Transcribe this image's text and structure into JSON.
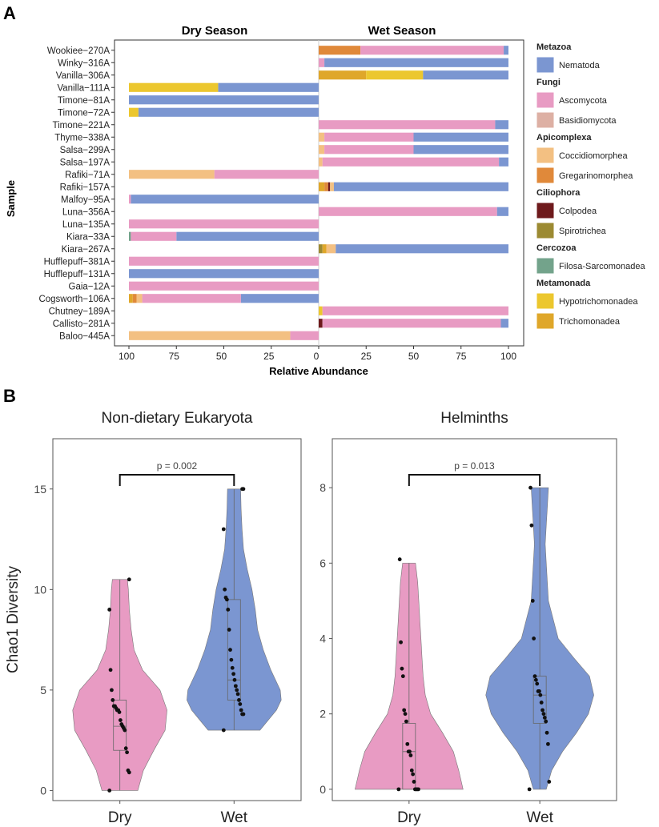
{
  "colors": {
    "Nematoda": "#7b96d1",
    "Ascomycota": "#e89bc3",
    "Basidiomycota": "#ddb0a4",
    "Coccidiomorphea": "#f3c082",
    "Gregarinomorphea": "#e0893a",
    "Colpodea": "#6e1a1c",
    "Spirotrichea": "#9c8a32",
    "Filosa-Sarcomonadea": "#73a38b",
    "Hypotrichomonadea": "#ecc72e",
    "Trichomonadea": "#dfa72a",
    "dry": "#e89bc3",
    "wet": "#7b96d1"
  },
  "chart_data": [
    {
      "panel": "A",
      "type": "bar",
      "orientation": "horizontal",
      "stacked": true,
      "seasons": [
        "Dry Season",
        "Wet Season"
      ],
      "xlabel": "Relative Abundance",
      "ylabel": "Sample",
      "xticks_dry": [
        "100",
        "75",
        "50",
        "25",
        "0"
      ],
      "xticks_wet": [
        "0",
        "25",
        "50",
        "75",
        "100"
      ],
      "samples": [
        {
          "name": "Wookiee−270A",
          "dry": [],
          "wet": [
            [
              "Gregarinomorphea",
              22
            ],
            [
              "Ascomycota",
              75.5
            ],
            [
              "Nematoda",
              2.5
            ]
          ]
        },
        {
          "name": "Winky−316A",
          "dry": [],
          "wet": [
            [
              "Ascomycota",
              3
            ],
            [
              "Nematoda",
              97
            ]
          ]
        },
        {
          "name": "Vanilla−306A",
          "dry": [],
          "wet": [
            [
              "Trichomonadea",
              25
            ],
            [
              "Hypotrichomonadea",
              30
            ],
            [
              "Nematoda",
              45
            ]
          ]
        },
        {
          "name": "Vanilla−111A",
          "dry": [
            [
              "Nematoda",
              53
            ],
            [
              "Hypotrichomonadea",
              47
            ]
          ],
          "wet": []
        },
        {
          "name": "Timone−81A",
          "dry": [
            [
              "Nematoda",
              100
            ]
          ],
          "wet": []
        },
        {
          "name": "Timone−72A",
          "dry": [
            [
              "Nematoda",
              95
            ],
            [
              "Hypotrichomonadea",
              5
            ]
          ],
          "wet": []
        },
        {
          "name": "Timone−221A",
          "dry": [],
          "wet": [
            [
              "Ascomycota",
              93
            ],
            [
              "Nematoda",
              7
            ]
          ]
        },
        {
          "name": "Thyme−338A",
          "dry": [],
          "wet": [
            [
              "Coccidiomorphea",
              3
            ],
            [
              "Ascomycota",
              47
            ],
            [
              "Nematoda",
              50
            ]
          ]
        },
        {
          "name": "Salsa−299A",
          "dry": [],
          "wet": [
            [
              "Coccidiomorphea",
              3
            ],
            [
              "Ascomycota",
              47
            ],
            [
              "Nematoda",
              50
            ]
          ]
        },
        {
          "name": "Salsa−197A",
          "dry": [],
          "wet": [
            [
              "Coccidiomorphea",
              2
            ],
            [
              "Ascomycota",
              93
            ],
            [
              "Nematoda",
              5
            ]
          ]
        },
        {
          "name": "Rafiki−71A",
          "dry": [
            [
              "Ascomycota",
              55
            ],
            [
              "Coccidiomorphea",
              45
            ]
          ],
          "wet": []
        },
        {
          "name": "Rafiki−157A",
          "dry": [],
          "wet": [
            [
              "Trichomonadea",
              3
            ],
            [
              "Gregarinomorphea",
              2
            ],
            [
              "Colpodea",
              1
            ],
            [
              "Coccidiomorphea",
              2
            ],
            [
              "Nematoda",
              92
            ]
          ]
        },
        {
          "name": "Malfoy−95A",
          "dry": [
            [
              "Nematoda",
              99
            ],
            [
              "Ascomycota",
              1
            ]
          ],
          "wet": []
        },
        {
          "name": "Luna−356A",
          "dry": [],
          "wet": [
            [
              "Ascomycota",
              94
            ],
            [
              "Nematoda",
              6
            ]
          ]
        },
        {
          "name": "Luna−135A",
          "dry": [
            [
              "Ascomycota",
              100
            ]
          ],
          "wet": []
        },
        {
          "name": "Kiara−33A",
          "dry": [
            [
              "Nematoda",
              75
            ],
            [
              "Ascomycota",
              24
            ],
            [
              "Filosa-Sarcomonadea",
              1
            ]
          ],
          "wet": []
        },
        {
          "name": "Kiara−267A",
          "dry": [],
          "wet": [
            [
              "Spirotrichea",
              2
            ],
            [
              "Trichomonadea",
              2
            ],
            [
              "Coccidiomorphea",
              5
            ],
            [
              "Nematoda",
              91
            ]
          ]
        },
        {
          "name": "Hufflepuff−381A",
          "dry": [
            [
              "Ascomycota",
              100
            ]
          ],
          "wet": []
        },
        {
          "name": "Hufflepuff−131A",
          "dry": [
            [
              "Nematoda",
              100
            ]
          ],
          "wet": []
        },
        {
          "name": "Gaia−12A",
          "dry": [
            [
              "Ascomycota",
              100
            ]
          ],
          "wet": []
        },
        {
          "name": "Cogsworth−106A",
          "dry": [
            [
              "Nematoda",
              41
            ],
            [
              "Ascomycota",
              52
            ],
            [
              "Coccidiomorphea",
              3
            ],
            [
              "Gregarinomorphea",
              2
            ],
            [
              "Trichomonadea",
              2
            ]
          ],
          "wet": []
        },
        {
          "name": "Chutney−189A",
          "dry": [],
          "wet": [
            [
              "Hypotrichomonadea",
              2
            ],
            [
              "Ascomycota",
              98
            ]
          ]
        },
        {
          "name": "Callisto−281A",
          "dry": [],
          "wet": [
            [
              "Colpodea",
              2
            ],
            [
              "Ascomycota",
              94
            ],
            [
              "Nematoda",
              4
            ]
          ]
        },
        {
          "name": "Baloo−445A",
          "dry": [
            [
              "Ascomycota",
              15
            ],
            [
              "Coccidiomorphea",
              85
            ]
          ],
          "wet": []
        }
      ],
      "legend": [
        {
          "group": "Metazoa",
          "items": [
            "Nematoda"
          ]
        },
        {
          "group": "Fungi",
          "items": [
            "Ascomycota",
            "Basidiomycota"
          ]
        },
        {
          "group": "Apicomplexa",
          "items": [
            "Coccidiomorphea",
            "Gregarinomorphea"
          ]
        },
        {
          "group": "Ciliophora",
          "items": [
            "Colpodea",
            "Spirotrichea"
          ]
        },
        {
          "group": "Cercozoa",
          "items": [
            "Filosa-Sarcomonadea"
          ]
        },
        {
          "group": "Metamonada",
          "items": [
            "Hypotrichomonadea",
            "Trichomonadea"
          ]
        }
      ]
    },
    {
      "panel": "B",
      "type": "violin",
      "title": "Non-dietary Eukaryota",
      "ylabel": "Chao1 Diversity",
      "ylim": [
        -0.5,
        17.5
      ],
      "yticks": [
        0,
        5,
        10,
        15
      ],
      "p_label": "p = 0.002",
      "groups": [
        {
          "name": "Dry",
          "color_key": "dry",
          "min": 0,
          "q1": 2,
          "median": 3.2,
          "q3": 4.5,
          "max": 10.5,
          "density": [
            [
              0,
              0.38
            ],
            [
              1,
              0.5
            ],
            [
              2,
              0.72
            ],
            [
              3,
              0.96
            ],
            [
              4,
              1.0
            ],
            [
              5,
              0.85
            ],
            [
              6,
              0.48
            ],
            [
              7,
              0.3
            ],
            [
              8,
              0.24
            ],
            [
              9,
              0.2
            ],
            [
              10,
              0.18
            ],
            [
              10.5,
              0.16
            ]
          ],
          "points": [
            0,
            0.9,
            1,
            1.9,
            2.1,
            3,
            3.1,
            3.2,
            3.3,
            3.5,
            3.9,
            4,
            4,
            4.1,
            4.2,
            4.2,
            4.5,
            5,
            6,
            9,
            10.5
          ]
        },
        {
          "name": "Wet",
          "color_key": "wet",
          "min": 3,
          "q1": 4.5,
          "median": 5.5,
          "q3": 9.5,
          "max": 15,
          "density": [
            [
              3,
              0.55
            ],
            [
              4,
              0.9
            ],
            [
              4.5,
              1.0
            ],
            [
              5,
              0.98
            ],
            [
              6,
              0.78
            ],
            [
              7,
              0.62
            ],
            [
              8,
              0.5
            ],
            [
              9,
              0.45
            ],
            [
              10,
              0.38
            ],
            [
              11,
              0.28
            ],
            [
              12,
              0.2
            ],
            [
              13,
              0.17
            ],
            [
              14,
              0.15
            ],
            [
              15,
              0.14
            ]
          ],
          "points": [
            3,
            3.8,
            3.8,
            4,
            4.3,
            4.5,
            4.8,
            5,
            5.2,
            5.5,
            5.8,
            6.1,
            6.5,
            7,
            8,
            9,
            9.5,
            9.6,
            10,
            13,
            15,
            15
          ]
        }
      ]
    },
    {
      "panel": "B",
      "type": "violin",
      "title": "Helminths",
      "ylabel": "",
      "ylim": [
        -0.3,
        9.3
      ],
      "yticks": [
        0,
        2,
        4,
        6,
        8
      ],
      "p_label": "p = 0.013",
      "groups": [
        {
          "name": "Dry",
          "color_key": "dry",
          "min": 0,
          "q1": 0,
          "median": 1,
          "q3": 1.75,
          "max": 6,
          "density": [
            [
              0,
              1.0
            ],
            [
              0.5,
              0.92
            ],
            [
              1,
              0.82
            ],
            [
              1.5,
              0.62
            ],
            [
              2,
              0.4
            ],
            [
              2.5,
              0.3
            ],
            [
              3,
              0.26
            ],
            [
              3.5,
              0.24
            ],
            [
              4,
              0.22
            ],
            [
              4.5,
              0.2
            ],
            [
              5,
              0.18
            ],
            [
              5.5,
              0.16
            ],
            [
              6,
              0.12
            ]
          ],
          "points": [
            0,
            0,
            0,
            0,
            0,
            0.2,
            0.4,
            0.5,
            0.9,
            1,
            1,
            1.2,
            1.8,
            2,
            2.1,
            3,
            3.2,
            3.9,
            6.1
          ]
        },
        {
          "name": "Wet",
          "color_key": "wet",
          "min": 0,
          "q1": 1.75,
          "median": 2.5,
          "q3": 3,
          "max": 8,
          "density": [
            [
              0,
              0.12
            ],
            [
              0.5,
              0.22
            ],
            [
              1,
              0.42
            ],
            [
              1.5,
              0.68
            ],
            [
              2,
              0.9
            ],
            [
              2.5,
              1.0
            ],
            [
              3,
              0.92
            ],
            [
              3.5,
              0.62
            ],
            [
              4,
              0.34
            ],
            [
              5,
              0.16
            ],
            [
              6,
              0.12
            ],
            [
              6.5,
              0.1
            ],
            [
              7,
              0.12
            ],
            [
              7.5,
              0.14
            ],
            [
              8,
              0.16
            ]
          ],
          "points": [
            0,
            0.2,
            1.2,
            1.5,
            1.8,
            1.9,
            2,
            2.1,
            2.3,
            2.5,
            2.6,
            2.6,
            2.8,
            2.9,
            3,
            4,
            5,
            7,
            8
          ]
        }
      ]
    }
  ],
  "panel_labels": {
    "a": "A",
    "b": "B"
  }
}
